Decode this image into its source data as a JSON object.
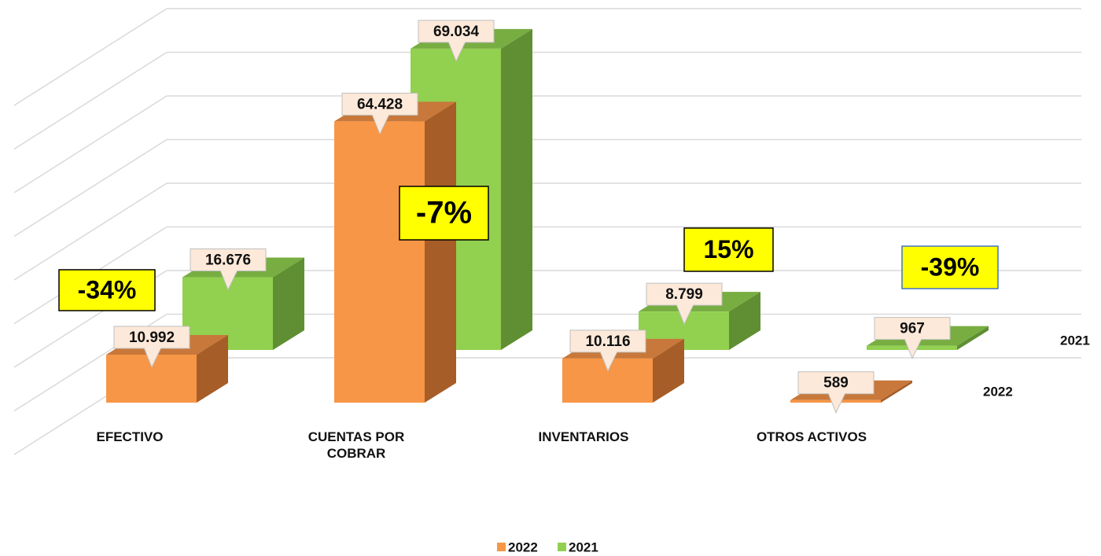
{
  "chart_data": {
    "type": "bar",
    "categories": [
      "EFECTIVO",
      "CUENTAS POR COBRAR",
      "INVENTARIOS",
      "OTROS ACTIVOS"
    ],
    "series": [
      {
        "name": "2022",
        "color": "#f79646",
        "values": [
          10992,
          64428,
          10116,
          589
        ],
        "value_labels": [
          "10.992",
          "64.428",
          "10.116",
          "589"
        ]
      },
      {
        "name": "2021",
        "color": "#92d050",
        "values": [
          16676,
          69034,
          8799,
          967
        ],
        "value_labels": [
          "16.676",
          "69.034",
          "8.799",
          "967"
        ]
      }
    ],
    "annotations": [
      "-34%",
      "-7%",
      "15%",
      "-39%"
    ],
    "ylim": [
      0,
      80000
    ],
    "yticks": [
      0,
      10000,
      20000,
      30000,
      40000,
      50000,
      60000,
      70000,
      80000
    ],
    "grid": true,
    "legend": "bottom"
  }
}
